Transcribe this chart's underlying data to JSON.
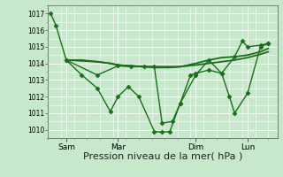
{
  "bg_color": "#c8e8cc",
  "grid_color": "#ffffff",
  "line_color": "#1a6e1a",
  "marker_color": "#1a6e1a",
  "xlabel": "Pression niveau de la mer( hPa )",
  "xlabel_fontsize": 8,
  "ylim": [
    1009.5,
    1017.5
  ],
  "yticks": [
    1010,
    1011,
    1012,
    1013,
    1014,
    1015,
    1016,
    1017
  ],
  "xtick_labels": [
    "Sam",
    "Mar",
    "Dim",
    "Lun"
  ],
  "xtick_positions": [
    12,
    52,
    112,
    152
  ],
  "series": [
    {
      "x": [
        0,
        4,
        12,
        24,
        36,
        46,
        52,
        60,
        68,
        80,
        86,
        92,
        100,
        112,
        122,
        132,
        138,
        142,
        152,
        162,
        168
      ],
      "y": [
        1017.0,
        1016.3,
        1014.2,
        1013.3,
        1012.5,
        1011.1,
        1012.0,
        1012.6,
        1012.0,
        1009.9,
        1009.85,
        1009.9,
        1011.6,
        1013.3,
        1014.2,
        1013.4,
        1012.0,
        1011.0,
        1012.2,
        1015.0,
        1015.2
      ],
      "marker": "D",
      "markersize": 2.5,
      "linewidth": 1.0
    },
    {
      "x": [
        12,
        24,
        36,
        46,
        52,
        62,
        72,
        92,
        100,
        112,
        122,
        132,
        142,
        152,
        162,
        168
      ],
      "y": [
        1014.2,
        1014.2,
        1014.1,
        1014.0,
        1013.9,
        1013.85,
        1013.8,
        1013.8,
        1013.8,
        1014.0,
        1014.2,
        1014.35,
        1014.4,
        1014.5,
        1014.7,
        1014.9
      ],
      "marker": "",
      "markersize": 0,
      "linewidth": 1.3
    },
    {
      "x": [
        12,
        24,
        36,
        46,
        52,
        62,
        72,
        80,
        92,
        100,
        112,
        122,
        132,
        142,
        152,
        162,
        168
      ],
      "y": [
        1014.2,
        1014.15,
        1014.1,
        1014.0,
        1013.9,
        1013.85,
        1013.8,
        1013.75,
        1013.75,
        1013.8,
        1013.9,
        1014.0,
        1014.1,
        1014.2,
        1014.35,
        1014.55,
        1014.7
      ],
      "marker": "",
      "markersize": 0,
      "linewidth": 1.3
    },
    {
      "x": [
        12,
        36,
        52,
        62,
        72,
        80,
        86,
        94,
        100,
        108,
        112,
        122,
        132,
        142,
        148,
        152,
        162,
        168
      ],
      "y": [
        1014.2,
        1013.3,
        1013.85,
        1013.8,
        1013.8,
        1013.8,
        1010.4,
        1010.5,
        1011.6,
        1013.3,
        1013.4,
        1013.6,
        1013.4,
        1014.4,
        1015.35,
        1015.0,
        1015.1,
        1015.2
      ],
      "marker": "D",
      "markersize": 2.5,
      "linewidth": 1.0
    }
  ]
}
